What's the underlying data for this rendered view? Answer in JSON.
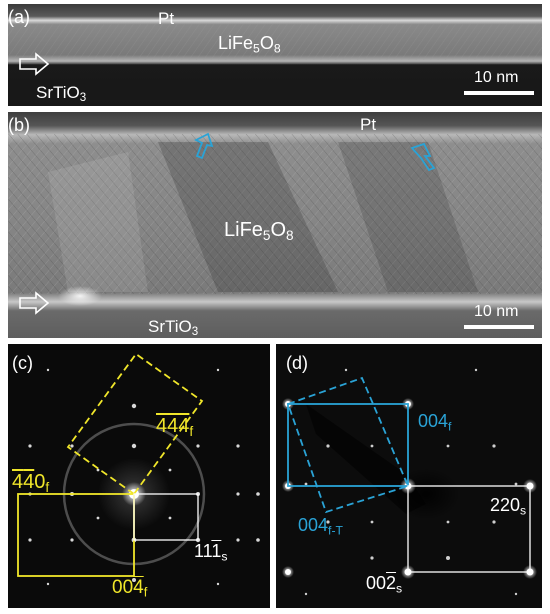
{
  "panels": {
    "a": {
      "label": "(a)",
      "pt": "Pt",
      "film_main": "LiFe",
      "film_sub1": "5",
      "film_mid": "O",
      "film_sub2": "8",
      "substrate_main": "SrTiO",
      "substrate_sub": "3",
      "scale_bar": "10 nm"
    },
    "b": {
      "label": "(b)",
      "pt": "Pt",
      "film_main": "LiFe",
      "film_sub1": "5",
      "film_mid": "O",
      "film_sub2": "8",
      "substrate_main": "SrTiO",
      "substrate_sub": "3",
      "scale_bar": "10 nm"
    },
    "c": {
      "label": "(c)",
      "idx_444": "444",
      "idx_444_sub": "f",
      "idx_440_a": "4",
      "idx_440_b": "4",
      "idx_440_c": "0",
      "idx_440_sub": "f",
      "idx_004_a": "00",
      "idx_004_b": "4",
      "idx_004_sub": "f",
      "idx_111_a": "11",
      "idx_111_b": "1",
      "idx_111_sub": "s"
    },
    "d": {
      "label": "(d)",
      "idx_004f": "004",
      "idx_004f_sub": "f",
      "idx_004fT": "004",
      "idx_004fT_sub": "f-T",
      "idx_220": "220",
      "idx_220_sub": "s",
      "idx_002_a": "00",
      "idx_002_b": "2",
      "idx_002_sub": "s"
    }
  },
  "colors": {
    "yellow": "#f0e62a",
    "blue": "#2aa3d6",
    "white": "#ffffff"
  }
}
